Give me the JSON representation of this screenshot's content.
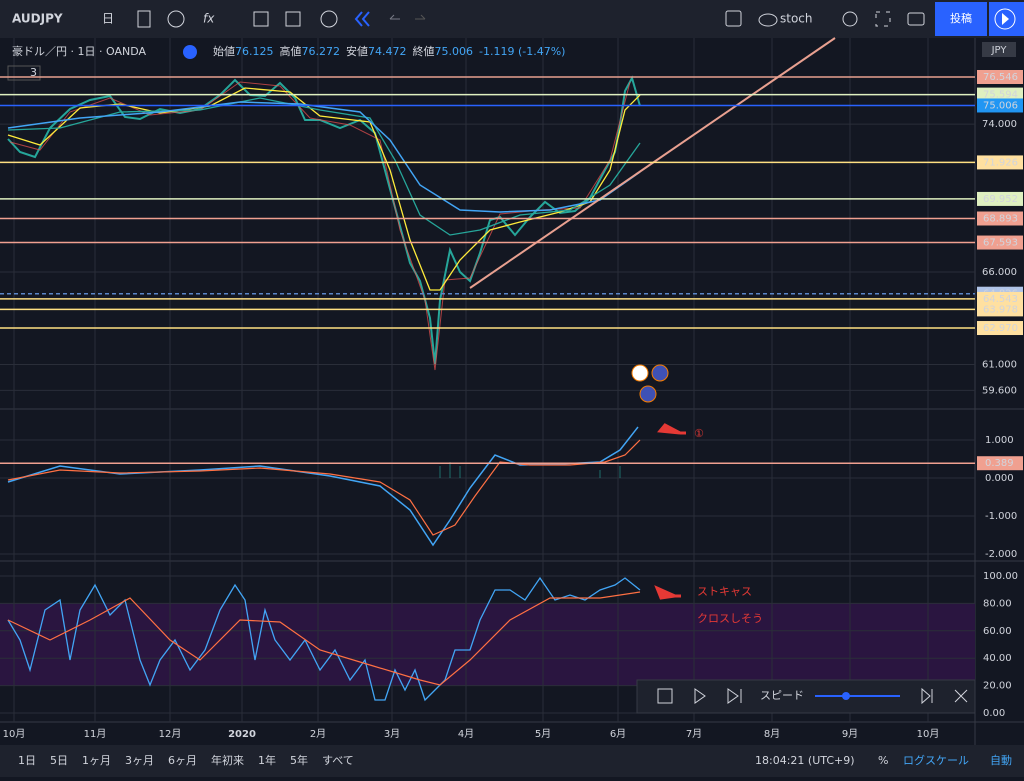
{
  "toolbar": {
    "symbol": "AUDJPY",
    "interval": "日",
    "function": "fx",
    "indicator": "stoch",
    "post": "投稿"
  },
  "header": {
    "title": "豪ドル／円 · 1日 · OANDA",
    "ohlc": [
      {
        "label": "始値",
        "value": "76.125"
      },
      {
        "label": "高値",
        "value": "76.272"
      },
      {
        "label": "安値",
        "value": "74.472"
      },
      {
        "label": "終値",
        "value": "75.006"
      }
    ],
    "change": "-1.119 (-1.47%)",
    "indicator_count": "3"
  },
  "price_axis": {
    "currency": "JPY",
    "ticks": [
      "74.000",
      "66.000",
      "61.000",
      "59.600"
    ],
    "levels": [
      {
        "label": "76.546",
        "color": "#f0a090",
        "line": "#e8a090"
      },
      {
        "label": "75.594",
        "color": "#dff0c0",
        "line": "#dff0c0"
      },
      {
        "label": "75.006",
        "color": "#2196f3",
        "line": "#2962ff"
      },
      {
        "label": "71.926",
        "color": "#ffe0a0",
        "line": "#ffe082"
      },
      {
        "label": "69.952",
        "color": "#dff0c0",
        "line": "#dff0c0"
      },
      {
        "label": "68.893",
        "color": "#f0a090",
        "line": "#f0a090"
      },
      {
        "label": "67.593",
        "color": "#f0a090",
        "line": "#f0a090"
      },
      {
        "label": "64.826",
        "color": "#b0c4e8",
        "line": "#5b86c8"
      },
      {
        "label": "64.543",
        "color": "#ffe0a0",
        "line": "#ffe082"
      },
      {
        "label": "63.978",
        "color": "#ffe0a0",
        "line": "#ffe082"
      },
      {
        "label": "62.970",
        "color": "#ffe0a0",
        "line": "#ffe082"
      }
    ]
  },
  "macd_axis": {
    "ticks": [
      "1.000",
      "0.000",
      "-1.000",
      "-2.000"
    ],
    "level": "0.389"
  },
  "stoch_axis": {
    "ticks": [
      "100.00",
      "80.00",
      "60.00",
      "40.00",
      "20.00",
      "0.00"
    ]
  },
  "time_axis": [
    "10月",
    "11月",
    "12月",
    "2020",
    "2月",
    "3月",
    "4月",
    "5月",
    "6月",
    "7月",
    "8月",
    "9月",
    "10月"
  ],
  "annotations": {
    "macd": "①",
    "stoch_line1": "ストキャス",
    "stoch_line2": "クロスしそう"
  },
  "replay": {
    "speed": "スピード"
  },
  "bottom_bar": {
    "ranges": [
      "1日",
      "5日",
      "1ヶ月",
      "3ヶ月",
      "6ヶ月",
      "年初来",
      "1年",
      "5年",
      "すべて"
    ],
    "time": "18:04:21 (UTC+9)",
    "percent": "%",
    "log": "ログスケール",
    "auto": "自動"
  }
}
